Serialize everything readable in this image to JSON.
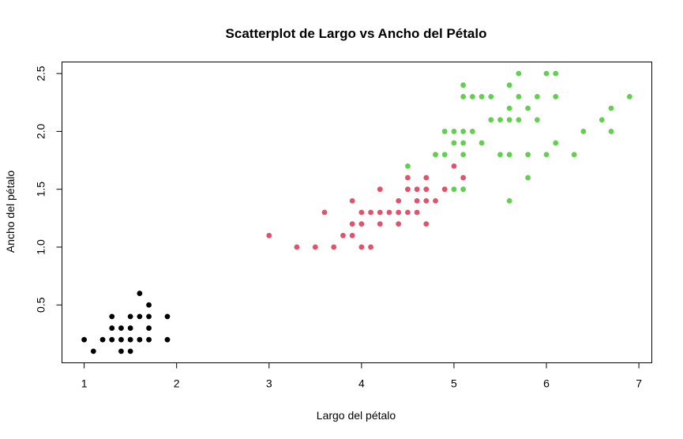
{
  "chart_data": {
    "type": "scatter",
    "title": "Scatterplot de Largo vs Ancho del Pétalo",
    "xlabel": "Largo del pétalo",
    "ylabel": "Ancho del pétalo",
    "xlim": [
      0.76,
      7.14
    ],
    "ylim": [
      0.0,
      2.6
    ],
    "xticks": [
      1,
      2,
      3,
      4,
      5,
      6,
      7
    ],
    "yticks": [
      0.5,
      1.0,
      1.5,
      2.0,
      2.5
    ],
    "xtick_labels": [
      "1",
      "2",
      "3",
      "4",
      "5",
      "6",
      "7"
    ],
    "ytick_labels": [
      "0.5",
      "1.0",
      "1.5",
      "2.0",
      "2.5"
    ],
    "grid": false,
    "series": [
      {
        "color": "#000000",
        "points": [
          [
            1.0,
            0.2
          ],
          [
            1.1,
            0.1
          ],
          [
            1.2,
            0.2
          ],
          [
            1.3,
            0.2
          ],
          [
            1.3,
            0.3
          ],
          [
            1.3,
            0.4
          ],
          [
            1.4,
            0.1
          ],
          [
            1.4,
            0.2
          ],
          [
            1.4,
            0.3
          ],
          [
            1.5,
            0.1
          ],
          [
            1.5,
            0.2
          ],
          [
            1.5,
            0.3
          ],
          [
            1.5,
            0.4
          ],
          [
            1.6,
            0.2
          ],
          [
            1.6,
            0.4
          ],
          [
            1.6,
            0.6
          ],
          [
            1.7,
            0.2
          ],
          [
            1.7,
            0.3
          ],
          [
            1.7,
            0.4
          ],
          [
            1.7,
            0.5
          ],
          [
            1.9,
            0.2
          ],
          [
            1.9,
            0.4
          ]
        ]
      },
      {
        "color": "#DF536B",
        "points": [
          [
            3.0,
            1.1
          ],
          [
            3.3,
            1.0
          ],
          [
            3.5,
            1.0
          ],
          [
            3.6,
            1.3
          ],
          [
            3.7,
            1.0
          ],
          [
            3.8,
            1.1
          ],
          [
            3.9,
            1.1
          ],
          [
            3.9,
            1.2
          ],
          [
            3.9,
            1.4
          ],
          [
            4.0,
            1.0
          ],
          [
            4.0,
            1.2
          ],
          [
            4.0,
            1.3
          ],
          [
            4.1,
            1.0
          ],
          [
            4.1,
            1.3
          ],
          [
            4.2,
            1.2
          ],
          [
            4.2,
            1.3
          ],
          [
            4.2,
            1.5
          ],
          [
            4.3,
            1.3
          ],
          [
            4.4,
            1.2
          ],
          [
            4.4,
            1.3
          ],
          [
            4.4,
            1.4
          ],
          [
            4.5,
            1.3
          ],
          [
            4.5,
            1.5
          ],
          [
            4.5,
            1.6
          ],
          [
            4.6,
            1.3
          ],
          [
            4.6,
            1.4
          ],
          [
            4.6,
            1.5
          ],
          [
            4.7,
            1.2
          ],
          [
            4.7,
            1.4
          ],
          [
            4.7,
            1.5
          ],
          [
            4.7,
            1.6
          ],
          [
            4.8,
            1.4
          ],
          [
            4.8,
            1.8
          ],
          [
            4.9,
            1.5
          ],
          [
            5.0,
            1.7
          ],
          [
            5.1,
            1.6
          ]
        ]
      },
      {
        "color": "#61D04F",
        "points": [
          [
            4.5,
            1.7
          ],
          [
            4.8,
            1.8
          ],
          [
            4.9,
            1.8
          ],
          [
            4.9,
            2.0
          ],
          [
            5.0,
            1.5
          ],
          [
            5.0,
            1.9
          ],
          [
            5.0,
            2.0
          ],
          [
            5.1,
            1.5
          ],
          [
            5.1,
            1.8
          ],
          [
            5.1,
            1.9
          ],
          [
            5.1,
            2.0
          ],
          [
            5.1,
            2.3
          ],
          [
            5.1,
            2.4
          ],
          [
            5.2,
            2.0
          ],
          [
            5.2,
            2.3
          ],
          [
            5.3,
            1.9
          ],
          [
            5.3,
            2.3
          ],
          [
            5.4,
            2.1
          ],
          [
            5.4,
            2.3
          ],
          [
            5.5,
            1.8
          ],
          [
            5.5,
            2.1
          ],
          [
            5.6,
            1.4
          ],
          [
            5.6,
            1.8
          ],
          [
            5.6,
            2.1
          ],
          [
            5.6,
            2.2
          ],
          [
            5.6,
            2.4
          ],
          [
            5.7,
            2.1
          ],
          [
            5.7,
            2.3
          ],
          [
            5.7,
            2.5
          ],
          [
            5.8,
            1.6
          ],
          [
            5.8,
            1.8
          ],
          [
            5.8,
            2.2
          ],
          [
            5.9,
            2.1
          ],
          [
            5.9,
            2.3
          ],
          [
            6.0,
            1.8
          ],
          [
            6.0,
            2.5
          ],
          [
            6.1,
            1.9
          ],
          [
            6.1,
            2.3
          ],
          [
            6.1,
            2.5
          ],
          [
            6.3,
            1.8
          ],
          [
            6.4,
            2.0
          ],
          [
            6.6,
            2.1
          ],
          [
            6.7,
            2.0
          ],
          [
            6.7,
            2.2
          ],
          [
            6.9,
            2.3
          ]
        ]
      }
    ]
  }
}
